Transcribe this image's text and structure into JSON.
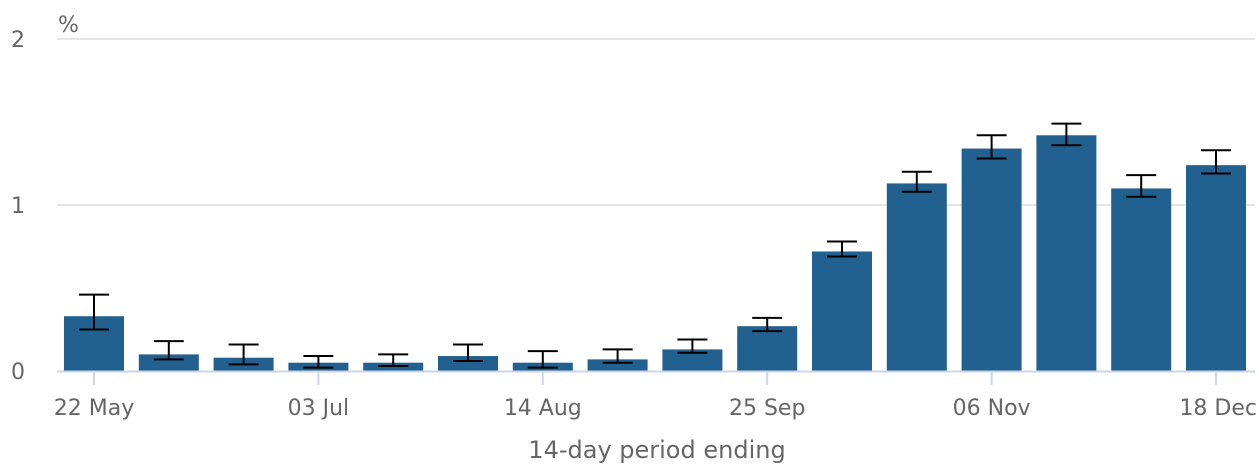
{
  "chart_data": {
    "type": "bar",
    "title": "",
    "ylabel": "%",
    "xlabel": "14-day period ending",
    "ylim": [
      0,
      2
    ],
    "y_ticks": [
      "0",
      "1",
      "2"
    ],
    "x_tick_labels": [
      "22 May",
      "03 Jul",
      "14 Aug",
      "25 Sep",
      "06 Nov",
      "18 Dec"
    ],
    "x_tick_positions": [
      0,
      3,
      6,
      9,
      12,
      15
    ],
    "grid": true,
    "bar_color": "#21608f",
    "grid_color": "#e6e6e6",
    "axis_color": "#ccd6eb",
    "text_color": "#666666",
    "series": [
      {
        "values": [
          0.33,
          0.1,
          0.08,
          0.05,
          0.05,
          0.09,
          0.05,
          0.07,
          0.13,
          0.27,
          0.72,
          1.13,
          1.34,
          1.42,
          1.1,
          1.24
        ],
        "lower": [
          0.25,
          0.07,
          0.04,
          0.02,
          0.03,
          0.06,
          0.02,
          0.05,
          0.11,
          0.24,
          0.69,
          1.08,
          1.28,
          1.36,
          1.05,
          1.19
        ],
        "upper": [
          0.46,
          0.18,
          0.16,
          0.09,
          0.1,
          0.16,
          0.12,
          0.13,
          0.19,
          0.32,
          0.78,
          1.2,
          1.42,
          1.49,
          1.18,
          1.33
        ]
      }
    ]
  }
}
